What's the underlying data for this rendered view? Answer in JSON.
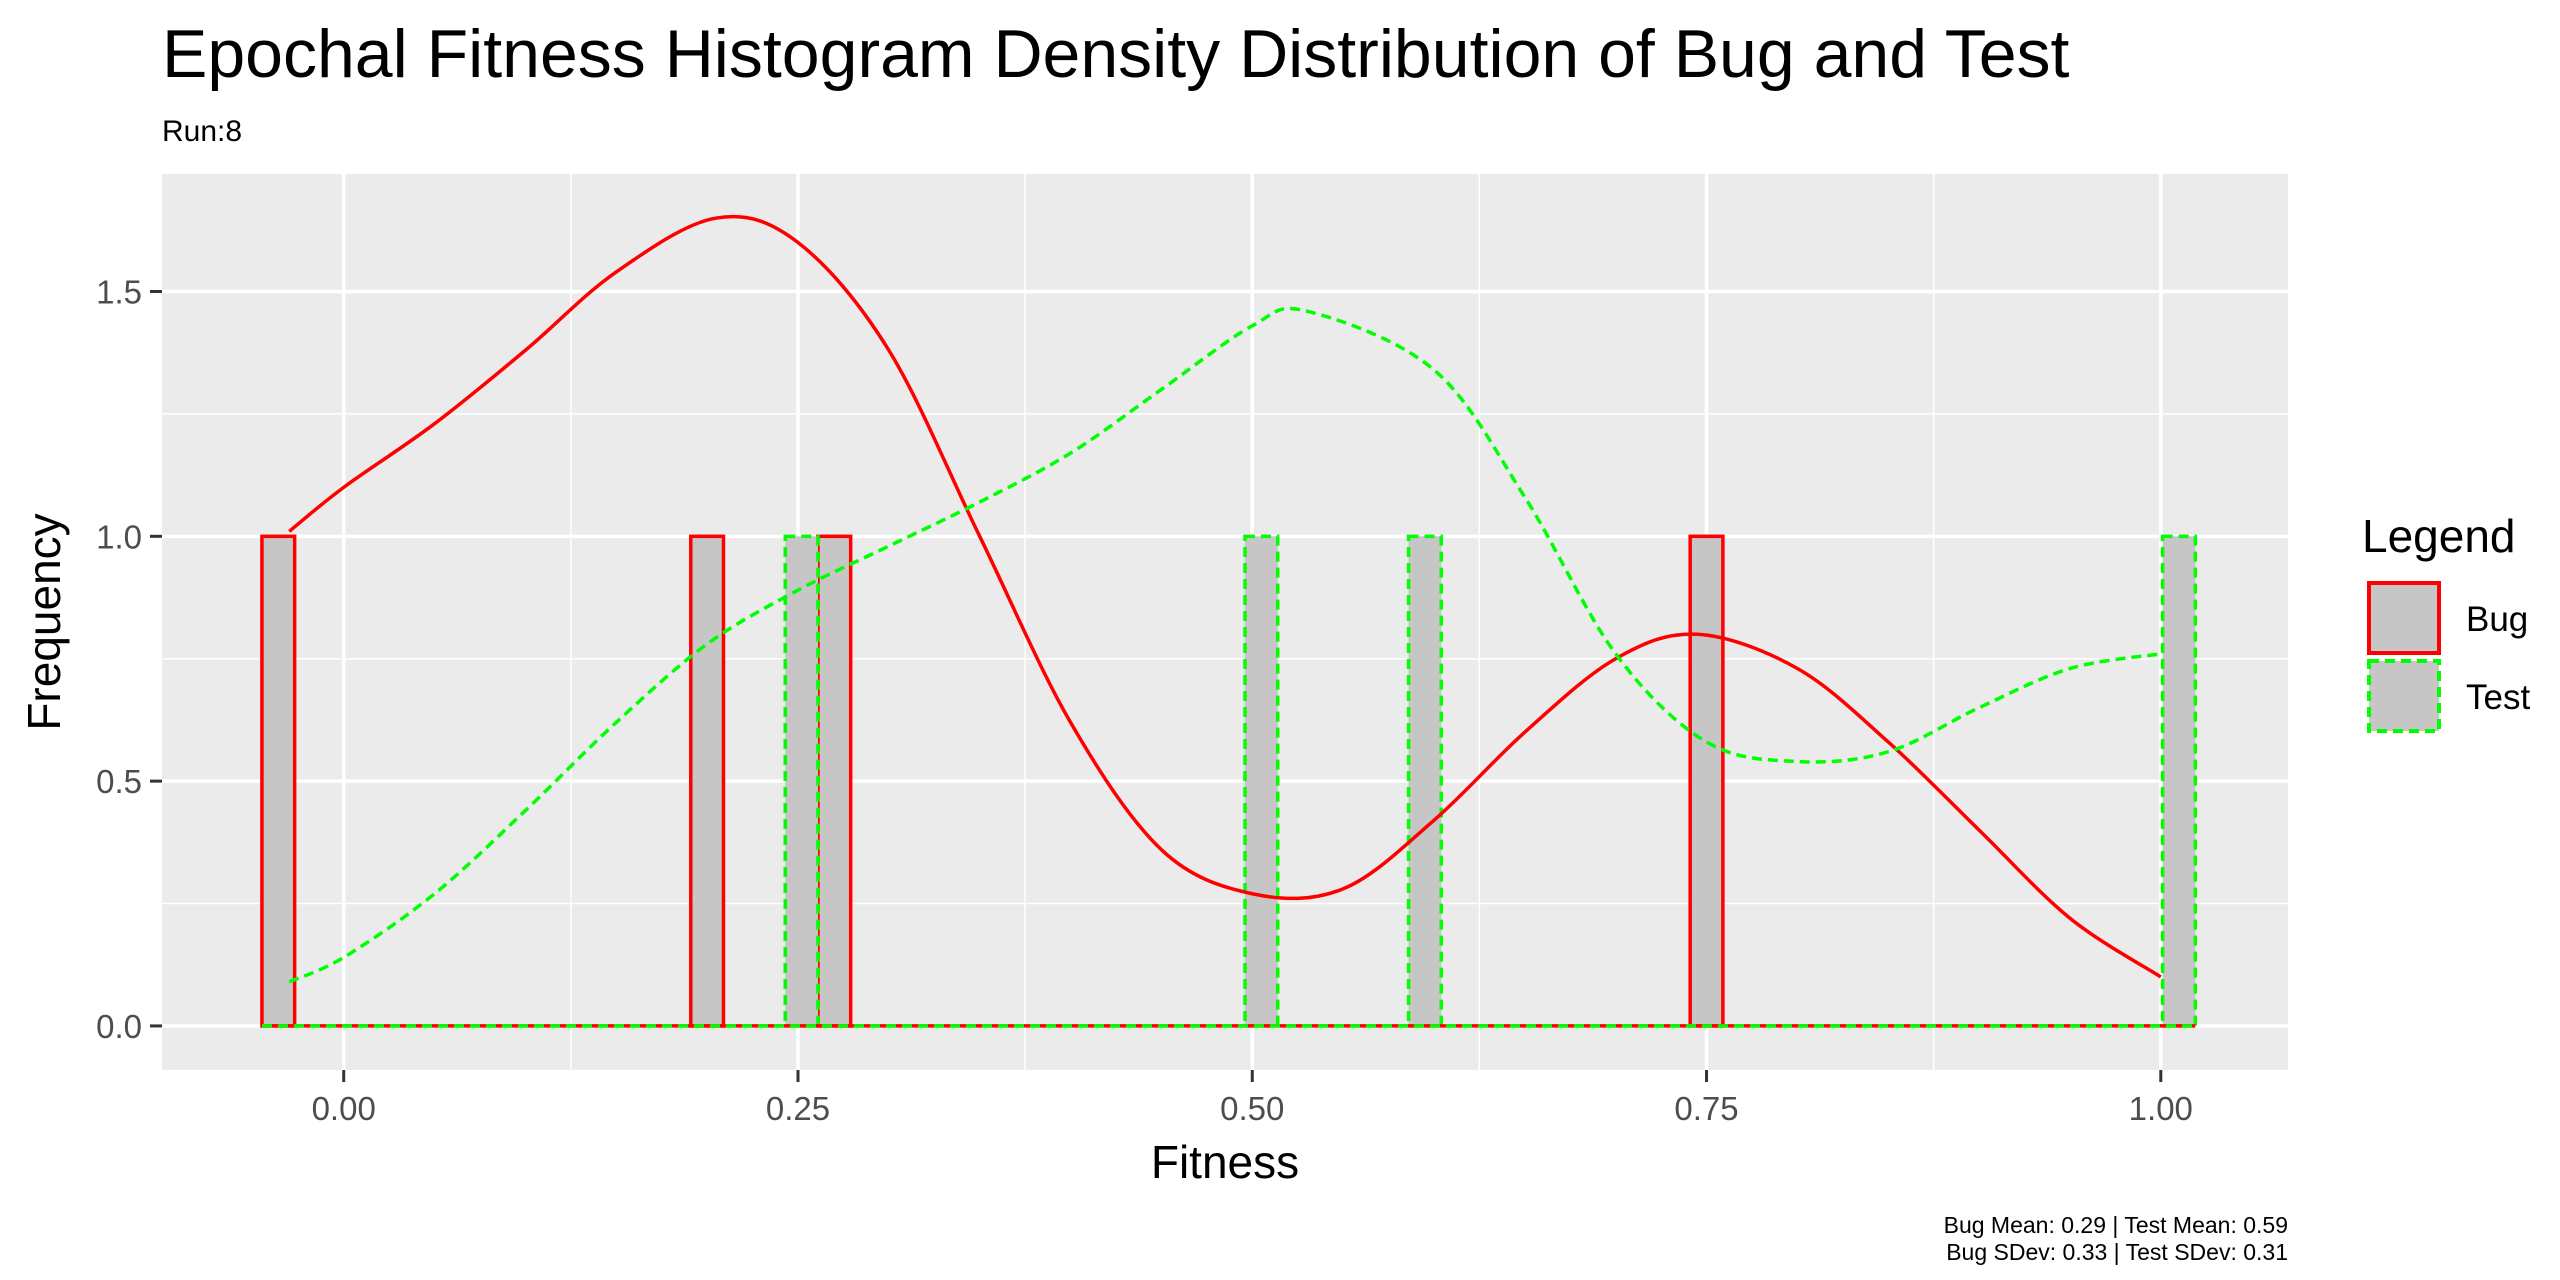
{
  "chart_data": {
    "type": "histogram",
    "title": "Epochal Fitness Histogram Density Distribution of Bug and Test",
    "subtitle": "Run:8",
    "xlabel": "Fitness",
    "ylabel": "Frequency",
    "xlim": [
      -0.1,
      1.07
    ],
    "ylim": [
      -0.09,
      1.74
    ],
    "x_ticks": [
      0.0,
      0.25,
      0.5,
      0.75,
      1.0
    ],
    "x_tick_labels": [
      "0.00",
      "0.25",
      "0.50",
      "0.75",
      "1.00"
    ],
    "y_ticks": [
      0.0,
      0.5,
      1.0,
      1.5
    ],
    "y_tick_labels": [
      "0.0",
      "0.5",
      "1.0",
      "1.5"
    ],
    "grid": true,
    "legend": {
      "title": "Legend",
      "placement": "right",
      "entries": [
        "Bug",
        "Test"
      ]
    },
    "bin_width": 0.018,
    "series": [
      {
        "name": "Bug",
        "color": "#ff0000",
        "line_style": "solid",
        "bins": [
          {
            "x": -0.036,
            "count": 1
          },
          {
            "x": 0.2,
            "count": 1
          },
          {
            "x": 0.27,
            "count": 1
          },
          {
            "x": 0.75,
            "count": 1
          }
        ],
        "density": [
          [
            -0.03,
            1.01
          ],
          [
            0.0,
            1.1
          ],
          [
            0.05,
            1.23
          ],
          [
            0.1,
            1.38
          ],
          [
            0.15,
            1.54
          ],
          [
            0.205,
            1.65
          ],
          [
            0.25,
            1.6
          ],
          [
            0.3,
            1.38
          ],
          [
            0.35,
            1.0
          ],
          [
            0.4,
            0.62
          ],
          [
            0.45,
            0.36
          ],
          [
            0.5,
            0.27
          ],
          [
            0.55,
            0.28
          ],
          [
            0.6,
            0.42
          ],
          [
            0.65,
            0.6
          ],
          [
            0.7,
            0.75
          ],
          [
            0.745,
            0.8
          ],
          [
            0.8,
            0.73
          ],
          [
            0.85,
            0.58
          ],
          [
            0.9,
            0.4
          ],
          [
            0.95,
            0.22
          ],
          [
            1.0,
            0.1
          ]
        ]
      },
      {
        "name": "Test",
        "color": "#00ff00",
        "line_style": "dashed",
        "bins": [
          {
            "x": 0.252,
            "count": 1
          },
          {
            "x": 0.505,
            "count": 1
          },
          {
            "x": 0.595,
            "count": 1
          },
          {
            "x": 1.01,
            "count": 1
          }
        ],
        "density": [
          [
            -0.03,
            0.09
          ],
          [
            0.0,
            0.14
          ],
          [
            0.05,
            0.27
          ],
          [
            0.1,
            0.44
          ],
          [
            0.15,
            0.62
          ],
          [
            0.2,
            0.78
          ],
          [
            0.25,
            0.89
          ],
          [
            0.3,
            0.98
          ],
          [
            0.35,
            1.07
          ],
          [
            0.4,
            1.17
          ],
          [
            0.45,
            1.3
          ],
          [
            0.5,
            1.43
          ],
          [
            0.53,
            1.46
          ],
          [
            0.6,
            1.34
          ],
          [
            0.65,
            1.08
          ],
          [
            0.7,
            0.76
          ],
          [
            0.75,
            0.58
          ],
          [
            0.8,
            0.54
          ],
          [
            0.85,
            0.56
          ],
          [
            0.9,
            0.65
          ],
          [
            0.95,
            0.73
          ],
          [
            1.0,
            0.76
          ]
        ]
      }
    ],
    "caption": [
      "Bug Mean: 0.29 | Test Mean: 0.59",
      "Bug SDev: 0.33 | Test SDev: 0.31"
    ],
    "colors": {
      "panel_background": "#ebebeb",
      "grid": "#ffffff",
      "bar_fill": "#c6c6c6",
      "bug": "#ff0000",
      "test": "#00ff00"
    }
  }
}
